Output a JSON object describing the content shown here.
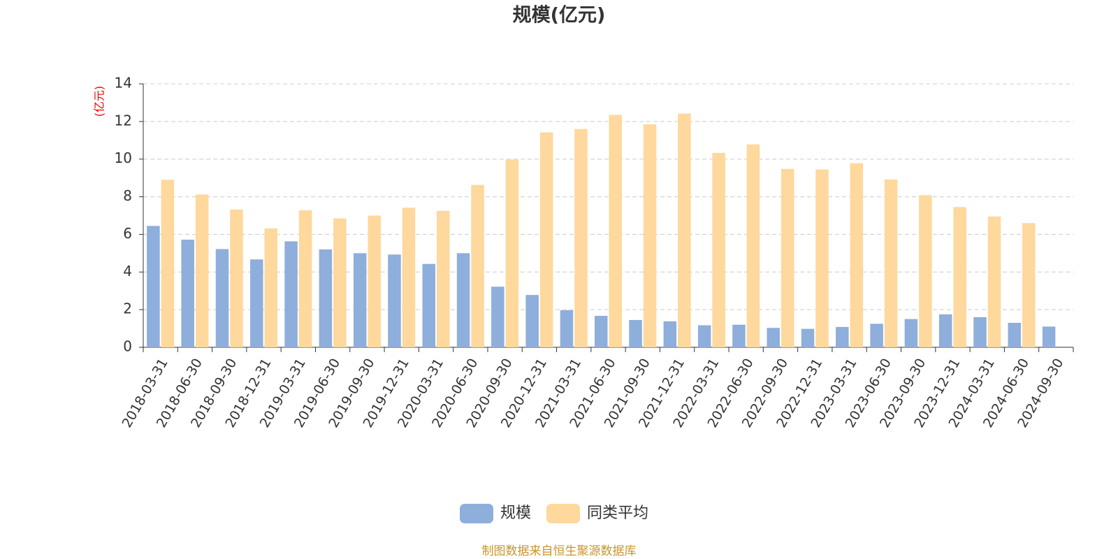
{
  "chart_data": {
    "type": "bar",
    "title": "规模(亿元)",
    "y_label": "(亿元)",
    "source": "制图数据来自恒生聚源数据库",
    "categories": [
      "2018-03-31",
      "2018-06-30",
      "2018-09-30",
      "2018-12-31",
      "2019-03-31",
      "2019-06-30",
      "2019-09-30",
      "2019-12-31",
      "2020-03-31",
      "2020-06-30",
      "2020-09-30",
      "2020-12-31",
      "2021-03-31",
      "2021-06-30",
      "2021-09-30",
      "2021-12-31",
      "2022-03-31",
      "2022-06-30",
      "2022-09-30",
      "2022-12-31",
      "2023-03-31",
      "2023-06-30",
      "2023-09-30",
      "2023-12-31",
      "2024-03-31",
      "2024-06-30",
      "2024-09-30"
    ],
    "series": [
      {
        "name": "规模",
        "color": "#8eaedc",
        "values": [
          6.45,
          5.72,
          5.22,
          4.67,
          5.63,
          5.2,
          5.0,
          4.93,
          4.43,
          5.0,
          3.22,
          2.78,
          1.97,
          1.67,
          1.45,
          1.38,
          1.17,
          1.2,
          1.03,
          0.98,
          1.08,
          1.25,
          1.5,
          1.75,
          1.6,
          1.3,
          1.1
        ]
      },
      {
        "name": "同类平均",
        "color": "#fed89c",
        "values": [
          8.9,
          8.12,
          7.32,
          6.32,
          7.28,
          6.85,
          7.0,
          7.42,
          7.25,
          8.63,
          9.97,
          11.42,
          11.6,
          12.35,
          11.85,
          12.42,
          10.33,
          10.78,
          9.48,
          9.45,
          9.78,
          8.92,
          8.08,
          7.45,
          6.95,
          6.6,
          null
        ]
      }
    ],
    "ylim": [
      0,
      14
    ],
    "yticks": [
      0,
      2,
      4,
      6,
      8,
      10,
      12,
      14
    ],
    "grid": true
  }
}
